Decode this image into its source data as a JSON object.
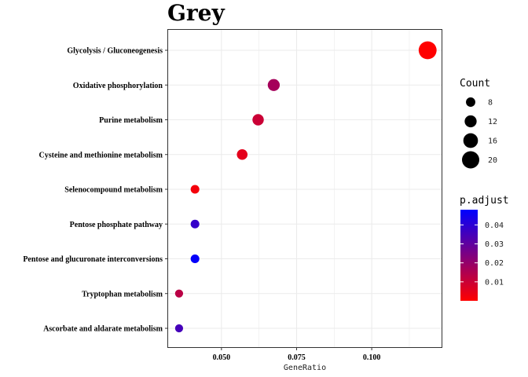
{
  "chart_data": {
    "type": "scatter",
    "title": "Grey",
    "xlabel": "GeneRatio",
    "ylabel": "",
    "xlim": [
      0.032,
      0.1235
    ],
    "x_ticks": [
      {
        "value": 0.05,
        "label": "0.050"
      },
      {
        "value": 0.075,
        "label": "0.075"
      },
      {
        "value": 0.1,
        "label": "0.100"
      }
    ],
    "categories": [
      "Glycolysis / Gluconeogenesis",
      "Oxidative phosphorylation",
      "Purine metabolism",
      "Cysteine and methionine metabolism",
      "Selenocompound metabolism",
      "Pentose phosphate pathway",
      "Pentose and glucuronate interconversions",
      "Tryptophan metabolism",
      "Ascorbate and aldarate metabolism"
    ],
    "points": [
      {
        "term": "Glycolysis / Gluconeogenesis",
        "gene_ratio": 0.1186,
        "count": 21,
        "p_adjust": 0.0
      },
      {
        "term": "Oxidative phosphorylation",
        "gene_ratio": 0.0674,
        "count": 12,
        "p_adjust": 0.017
      },
      {
        "term": "Purine metabolism",
        "gene_ratio": 0.0622,
        "count": 11,
        "p_adjust": 0.01
      },
      {
        "term": "Cysteine and methionine metabolism",
        "gene_ratio": 0.0569,
        "count": 10,
        "p_adjust": 0.005
      },
      {
        "term": "Selenocompound metabolism",
        "gene_ratio": 0.0412,
        "count": 7,
        "p_adjust": 0.002
      },
      {
        "term": "Pentose phosphate pathway",
        "gene_ratio": 0.0412,
        "count": 7,
        "p_adjust": 0.038
      },
      {
        "term": "Pentose and glucuronate interconversions",
        "gene_ratio": 0.0412,
        "count": 7,
        "p_adjust": 0.047
      },
      {
        "term": "Tryptophan metabolism",
        "gene_ratio": 0.0359,
        "count": 6,
        "p_adjust": 0.013
      },
      {
        "term": "Ascorbate and aldarate metabolism",
        "gene_ratio": 0.0359,
        "count": 6,
        "p_adjust": 0.035
      }
    ],
    "size_legend": {
      "title": "Count",
      "entries": [
        8,
        12,
        16,
        20
      ]
    },
    "color_legend": {
      "title": "p.adjust",
      "low_color": "#ff0000",
      "high_color": "#0000ff",
      "range": [
        0.0,
        0.048
      ],
      "ticks": [
        {
          "value": 0.01,
          "label": "0.01"
        },
        {
          "value": 0.02,
          "label": "0.02"
        },
        {
          "value": 0.03,
          "label": "0.03"
        },
        {
          "value": 0.04,
          "label": "0.04"
        }
      ]
    },
    "grid": true,
    "legend_position": "right",
    "background": "#ffffff",
    "grid_color": "#ebebeb",
    "panel_border_color": "#333333"
  }
}
